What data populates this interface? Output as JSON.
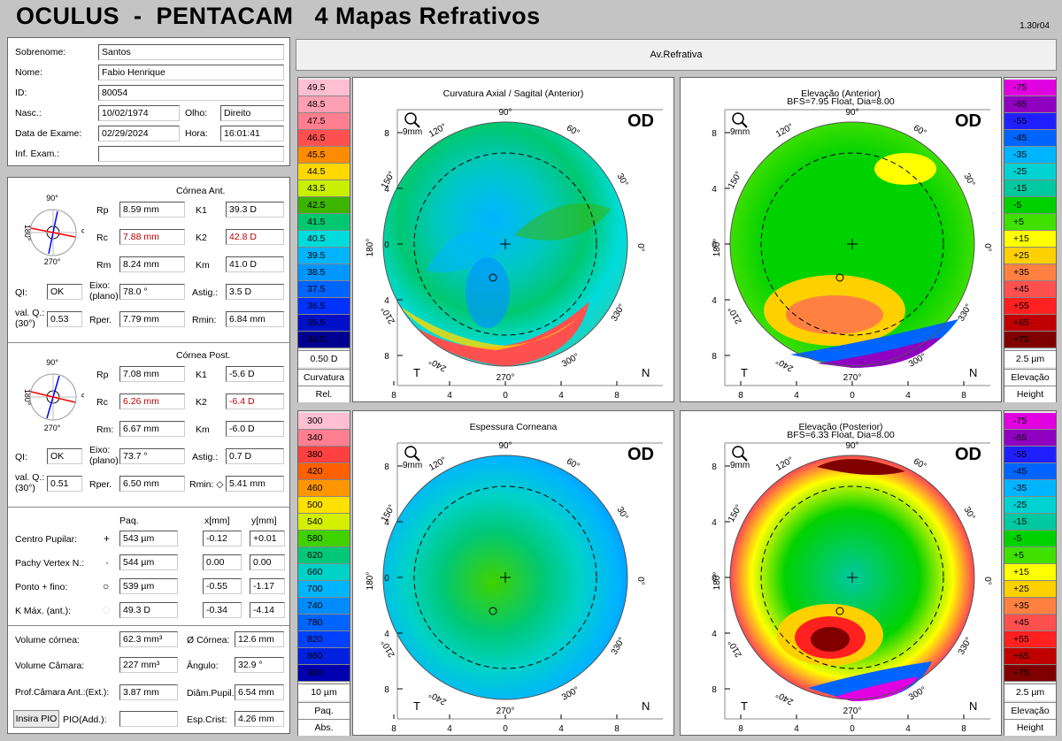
{
  "header": {
    "title": "OCULUS  -  PENTACAM   4 Mapas Refrativos",
    "version": "1.30r04"
  },
  "patient": {
    "sobrenome_label": "Sobrenome:",
    "sobrenome": "Santos",
    "nome_label": "Nome:",
    "nome": "Fabio Henrique",
    "id_label": "ID:",
    "id": "80054",
    "nasc_label": "Nasc.:",
    "nasc": "10/02/1974",
    "olho_label": "Olho:",
    "olho": "Direito",
    "exame_label": "Data de Exame:",
    "exame": "02/29/2024",
    "hora_label": "Hora:",
    "hora": "16:01:41",
    "inf_label": "Inf. Exam.:",
    "inf": ""
  },
  "cornea_ant": {
    "title": "Córnea Ant.",
    "rp_label": "Rp",
    "rp": "8.59 mm",
    "k1_label": "K1",
    "k1": "39.3 D",
    "rc_label": "Rc",
    "rc": "7.88 mm",
    "k2_label": "K2",
    "k2": "42.8 D",
    "rm_label": "Rm",
    "rm": "8.24 mm",
    "km_label": "Km",
    "km": "41.0 D",
    "qi_label": "QI:",
    "qi": "OK",
    "eixo_label": "Eixo:",
    "eixo_sub": "(plano)",
    "eixo": "78.0 °",
    "astig_label": "Astig.:",
    "astig": "3.5 D",
    "valq_label": "val. Q.:",
    "valq_sub": "(30°)",
    "valq": "0.53",
    "rper_label": "Rper.",
    "rper": "7.79 mm",
    "rmin_label": "Rmin:",
    "rmin": "6.84 mm",
    "dial_90": "90°",
    "dial_180": "180°",
    "dial_0": "0°",
    "dial_270": "270°"
  },
  "cornea_post": {
    "title": "Córnea Post.",
    "rp_label": "Rp",
    "rp": "7.08 mm",
    "k1_label": "K1",
    "k1": "-5.6 D",
    "rc_label": "Rc",
    "rc": "6.26 mm",
    "k2_label": "K2",
    "k2": "-6.4 D",
    "rm_label": "Rm:",
    "rm": "6.67 mm",
    "km_label": "Km",
    "km": "-6.0 D",
    "qi_label": "QI:",
    "qi": "OK",
    "eixo_label": "Eixo:",
    "eixo_sub": "(plano)",
    "eixo": "73.7 °",
    "astig_label": "Astig.:",
    "astig": "0.7 D",
    "valq_label": "val. Q.:",
    "valq_sub": "(30°)",
    "valq": "0.51",
    "rper_label": "Rper.",
    "rper": "6.50 mm",
    "rmin_label": "Rmin: ◇",
    "rmin": "5.41 mm",
    "dial_90": "90°",
    "dial_180": "180°",
    "dial_0": "0°",
    "dial_270": "270°"
  },
  "pachy": {
    "col_paq": "Paq.",
    "col_x": "x[mm]",
    "col_y": "y[mm]",
    "rows": [
      {
        "label": "Centro Pupilar:",
        "sym": "+",
        "paq": "543 µm",
        "x": "-0.12",
        "y": "+0.01"
      },
      {
        "label": "Pachy Vertex N.:",
        "sym": "·",
        "paq": "544 µm",
        "x": "0.00",
        "y": "0.00"
      },
      {
        "label": "Ponto + fino:",
        "sym": "○",
        "paq": "539 µm",
        "x": "-0.55",
        "y": "-1.17"
      },
      {
        "label": "K Máx. (ant.):",
        "sym": "◆",
        "paq": "49.3 D",
        "x": "-0.34",
        "y": "-4.14"
      }
    ]
  },
  "volumes": {
    "vol_cornea_label": "Volume córnea:",
    "vol_cornea": "62.3 mm³",
    "diam_cornea_label": "Ø Córnea:",
    "diam_cornea": "12.6 mm",
    "vol_camara_label": "Volume Câmara:",
    "vol_camara": "227 mm³",
    "angulo_label": "Ângulo:",
    "angulo": "32.9 °",
    "prof_label": "Prof.Câmara Ant.:(Ext.):",
    "prof": "3.87 mm",
    "pupil_label": "Diâm.Pupil.:",
    "pupil": "6.54 mm",
    "pio_button": "Insira PIO",
    "pio_label": "PIO(Add.):",
    "pio": "",
    "espcrist_label": "Esp.Crist:",
    "espcrist": "4.26 mm"
  },
  "topbar": {
    "label": "Av.Refrativa"
  },
  "maps": {
    "tl": {
      "title": "Curvatura Axial / Sagital (Anterior)",
      "subtitle": "",
      "eye": "OD",
      "scale_title": "0.50 D",
      "scale_label1": "Curvatura",
      "scale_label2": "Rel.",
      "scale": [
        "49.5",
        "48.5",
        "47.5",
        "46.5",
        "45.5",
        "44.5",
        "43.5",
        "42.5",
        "41.5",
        "40.5",
        "39.5",
        "38.5",
        "37.5",
        "36.5",
        "35.5",
        "34.5"
      ],
      "colors": [
        "#ffbfd2",
        "#ff9fb4",
        "#ff7f90",
        "#ff5050",
        "#ff8c00",
        "#ffd800",
        "#c8f000",
        "#3cb400",
        "#00c870",
        "#00dcdc",
        "#00b4ff",
        "#0096ff",
        "#0064ff",
        "#0032ff",
        "#0010c8",
        "#000090"
      ]
    },
    "tr": {
      "title": "Elevação (Anterior)",
      "subtitle": "BFS=7.95 Float, Dia=8.00",
      "eye": "OD",
      "scale_title": "2.5 µm",
      "scale_label1": "Elevação",
      "scale_label2": "Height",
      "scale": [
        "-75",
        "-65",
        "-55",
        "-45",
        "-35",
        "-25",
        "-15",
        "-5",
        "+5",
        "+15",
        "+25",
        "+35",
        "+45",
        "+55",
        "+65",
        "+75"
      ],
      "colors": [
        "#e000e0",
        "#9000c0",
        "#2020ff",
        "#0064ff",
        "#00b4ff",
        "#00d2d2",
        "#00c8a0",
        "#00d200",
        "#40e000",
        "#ffff00",
        "#ffd000",
        "#ff8040",
        "#ff5050",
        "#ff2020",
        "#c00000",
        "#800000"
      ]
    },
    "bl": {
      "title": "Espessura Corneana",
      "subtitle": "",
      "eye": "OD",
      "scale_title": "10 µm",
      "scale_label1": "Paq.",
      "scale_label2": "Abs.",
      "scale": [
        "300",
        "340",
        "380",
        "420",
        "460",
        "500",
        "540",
        "580",
        "620",
        "660",
        "700",
        "740",
        "780",
        "820",
        "860",
        "900"
      ],
      "colors": [
        "#ffbfd2",
        "#ff7f90",
        "#ff4040",
        "#ff6000",
        "#ff9600",
        "#ffe000",
        "#d2f000",
        "#40d200",
        "#00c878",
        "#00d2c8",
        "#00b4ff",
        "#008cff",
        "#0064ff",
        "#0040ff",
        "#0020e0",
        "#0000b0"
      ]
    },
    "br": {
      "title": "Elevação (Posterior)",
      "subtitle": "BFS=6.33 Float, Dia=8.00",
      "eye": "OD",
      "scale_title": "2.5 µm",
      "scale_label1": "Elevação",
      "scale_label2": "Height",
      "scale": [
        "-75",
        "-65",
        "-55",
        "-45",
        "-35",
        "-25",
        "-15",
        "-5",
        "+5",
        "+15",
        "+25",
        "+35",
        "+45",
        "+55",
        "+65",
        "+75"
      ],
      "colors": [
        "#e000e0",
        "#9000c0",
        "#2020ff",
        "#0064ff",
        "#00b4ff",
        "#00d2d2",
        "#00c8a0",
        "#00d200",
        "#40e000",
        "#ffff00",
        "#ffd000",
        "#ff8040",
        "#ff5050",
        "#ff2020",
        "#c00000",
        "#800000"
      ]
    }
  },
  "axes": {
    "y_ticks": [
      "8",
      "4",
      "0",
      "4",
      "8"
    ],
    "x_ticks": [
      "8",
      "4",
      "0",
      "4",
      "8"
    ],
    "zoom": "9mm",
    "temporal": "T",
    "nasal": "N",
    "deg90": "90°",
    "deg60": "60°",
    "deg30": "30°",
    "deg0": "0°",
    "deg330": "330°",
    "deg300": "300°",
    "deg270": "270°",
    "deg240": "240°",
    "deg210": "210°",
    "deg180": "180°",
    "deg150": "150°",
    "deg120": "120°"
  }
}
